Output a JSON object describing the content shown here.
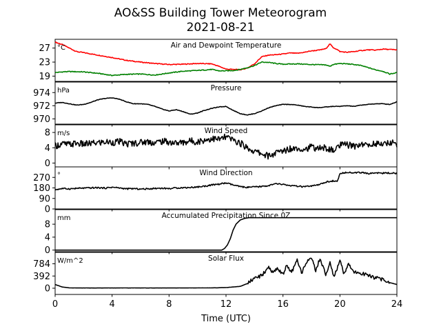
{
  "title": "AO&SS Building Tower Meteorogram",
  "subtitle": "2021-08-21",
  "chart_data": {
    "type": "line",
    "xlabel": "Time (UTC)",
    "xlim": [
      0,
      24
    ],
    "xticks": [
      0,
      4,
      8,
      12,
      16,
      20,
      24
    ],
    "panels": [
      {
        "name": "temperature",
        "title": "Air and Dewpoint Temperature",
        "unit": "°C",
        "ylim": [
          17.5,
          29.5
        ],
        "yticks": [
          19,
          23,
          27
        ],
        "series": [
          {
            "key": "air",
            "color": "#ff0000",
            "x": [
              0,
              0.5,
              1,
              1.5,
              2,
              3,
              4,
              5,
              6,
              7,
              8,
              9,
              10,
              11,
              11.5,
              12,
              12.5,
              13,
              13.5,
              14,
              14.5,
              15,
              15.5,
              16,
              16.5,
              17,
              17.5,
              18,
              18.5,
              19,
              19.3,
              19.5,
              19.8,
              20,
              20.5,
              21,
              21.5,
              22,
              22.5,
              23,
              23.5,
              24
            ],
            "y": [
              28.7,
              28.0,
              27.0,
              26.0,
              25.7,
              25.0,
              24.3,
              23.5,
              23.0,
              22.6,
              22.3,
              22.4,
              22.6,
              22.5,
              21.8,
              21.0,
              20.9,
              20.8,
              21.3,
              22.5,
              24.5,
              25.0,
              25.1,
              25.3,
              25.6,
              25.5,
              25.8,
              26.2,
              26.4,
              26.8,
              28.2,
              27.2,
              26.6,
              26.0,
              25.8,
              26.0,
              26.3,
              26.5,
              26.4,
              26.7,
              26.6,
              26.5
            ]
          },
          {
            "key": "dewpoint",
            "color": "#008000",
            "x": [
              0,
              0.5,
              1,
              2,
              3,
              4,
              5,
              6,
              7,
              8,
              9,
              10,
              11,
              11.5,
              12,
              12.5,
              13,
              13.5,
              14,
              14.5,
              15,
              15.5,
              16,
              17,
              18,
              19,
              19.3,
              19.5,
              20,
              20.5,
              21,
              21.5,
              22,
              22.5,
              23,
              23.5,
              24
            ],
            "y": [
              20.0,
              20.2,
              20.3,
              20.2,
              19.8,
              19.2,
              19.5,
              19.6,
              19.3,
              19.9,
              20.4,
              20.6,
              20.9,
              20.5,
              20.5,
              20.6,
              20.9,
              21.4,
              22.0,
              23.0,
              22.9,
              22.6,
              22.4,
              22.5,
              22.3,
              22.2,
              21.8,
              22.3,
              22.6,
              22.5,
              22.3,
              22.0,
              21.4,
              20.8,
              20.4,
              19.6,
              20.0
            ]
          }
        ]
      },
      {
        "name": "pressure",
        "title": "Pressure",
        "unit": "hPa",
        "ylim": [
          969.2,
          975.6
        ],
        "yticks": [
          970,
          972,
          974
        ],
        "series": [
          {
            "key": "pressure",
            "color": "#000000",
            "x": [
              0,
              0.5,
              1,
              1.5,
              2,
              2.5,
              3,
              3.5,
              4,
              4.5,
              5,
              5.5,
              6,
              6.5,
              7,
              7.5,
              8,
              8.5,
              9,
              9.5,
              10,
              10.5,
              11,
              11.5,
              12,
              12.5,
              13,
              13.5,
              14,
              14.5,
              15,
              15.5,
              16,
              16.5,
              17,
              17.5,
              18,
              18.5,
              19,
              19.5,
              20,
              20.5,
              21,
              21.5,
              22,
              22.5,
              23,
              23.5,
              24
            ],
            "y": [
              972.4,
              972.5,
              972.3,
              972.1,
              972.2,
              972.5,
              972.9,
              973.1,
              973.2,
              973.0,
              972.6,
              972.3,
              972.3,
              972.2,
              971.9,
              971.5,
              971.2,
              971.4,
              971.1,
              970.7,
              970.9,
              971.3,
              971.6,
              971.8,
              971.9,
              971.3,
              970.8,
              970.6,
              970.8,
              971.2,
              971.7,
              972.0,
              972.2,
              972.2,
              972.1,
              971.9,
              971.8,
              971.7,
              971.8,
              971.9,
              971.9,
              972.0,
              971.9,
              972.1,
              972.2,
              972.3,
              972.3,
              972.2,
              972.6
            ]
          }
        ]
      },
      {
        "name": "wind_speed",
        "title": "Wind Speed",
        "unit": "m/s",
        "ylim": [
          -1,
          10
        ],
        "yticks": [
          0,
          4,
          8
        ],
        "series": [
          {
            "key": "wind_speed",
            "color": "#000000",
            "x": [
              0,
              0.5,
              1,
              1.5,
              2,
              2.5,
              3,
              3.5,
              4,
              4.5,
              5,
              5.5,
              6,
              6.5,
              7,
              7.5,
              8,
              8.5,
              9,
              9.5,
              10,
              10.5,
              11,
              11.5,
              12,
              12.5,
              13,
              13.5,
              14,
              14.5,
              15,
              15.5,
              16,
              16.5,
              17,
              17.5,
              18,
              18.5,
              19,
              19.5,
              20,
              20.5,
              21,
              21.5,
              22,
              22.5,
              23,
              23.5,
              24
            ],
            "y": [
              4.5,
              5.0,
              4.8,
              5.2,
              4.9,
              5.1,
              5.3,
              5.5,
              5.4,
              5.6,
              5.0,
              5.2,
              5.4,
              5.6,
              5.3,
              5.7,
              5.5,
              5.2,
              5.4,
              5.8,
              5.6,
              6.0,
              6.4,
              6.2,
              6.8,
              6.0,
              5.2,
              4.0,
              3.0,
              2.5,
              1.8,
              2.6,
              3.2,
              3.8,
              4.0,
              3.6,
              4.2,
              3.8,
              4.0,
              3.2,
              4.6,
              4.8,
              4.4,
              5.0,
              4.6,
              5.2,
              4.8,
              5.4,
              5.0
            ]
          }
        ]
      },
      {
        "name": "wind_direction",
        "title": "Wind Direction",
        "unit": "°",
        "ylim": [
          0,
          360
        ],
        "yticks": [
          0,
          90,
          180,
          270
        ],
        "series": [
          {
            "key": "wind_direction",
            "color": "#000000",
            "x": [
              0,
              0.5,
              1,
              1.5,
              2,
              2.5,
              3,
              3.5,
              4,
              4.5,
              5,
              5.5,
              6,
              6.5,
              7,
              7.5,
              8,
              8.5,
              9,
              9.5,
              10,
              10.5,
              11,
              11.5,
              12,
              12.5,
              13,
              13.5,
              14,
              14.5,
              15,
              15.5,
              16,
              16.5,
              17,
              17.5,
              18,
              18.5,
              19,
              19.5,
              19.8,
              20,
              20.5,
              21,
              21.5,
              22,
              22.5,
              23,
              23.5,
              24
            ],
            "y": [
              165,
              175,
              172,
              176,
              178,
              180,
              182,
              178,
              186,
              180,
              172,
              174,
              170,
              172,
              176,
              178,
              174,
              180,
              182,
              184,
              188,
              195,
              205,
              212,
              222,
              205,
              190,
              185,
              188,
              192,
              200,
              215,
              210,
              200,
              194,
              190,
              196,
              205,
              230,
              240,
              232,
              300,
              316,
              308,
              312,
              302,
              310,
              306,
              308,
              304
            ]
          }
        ]
      },
      {
        "name": "precipitation",
        "title": "Accumulated Precipitation Since 0Z",
        "unit": "mm",
        "ylim": [
          -0.5,
          12.5
        ],
        "yticks": [
          0,
          4,
          8
        ],
        "series": [
          {
            "key": "precipitation",
            "color": "#000000",
            "x": [
              0,
              11.7,
              11.9,
              12.1,
              12.3,
              12.5,
              12.7,
              13.0,
              13.3,
              13.6,
              14.0,
              24
            ],
            "y": [
              0,
              0,
              0.5,
              1.6,
              3.5,
              6.2,
              8.0,
              9.3,
              9.8,
              10.0,
              10.0,
              10.0
            ]
          }
        ]
      },
      {
        "name": "solar_flux",
        "title": "Solar Flux",
        "unit": "W/m^2",
        "ylim": [
          -200,
          1150
        ],
        "yticks": [
          0,
          392,
          784
        ],
        "series": [
          {
            "key": "solar_flux",
            "color": "#000000",
            "x": [
              0,
              0.5,
              1,
              2,
              4,
              6,
              8,
              10,
              11,
              12,
              12.5,
              13,
              13.5,
              14,
              14.5,
              15,
              15.3,
              15.6,
              16,
              16.3,
              16.6,
              17,
              17.3,
              17.6,
              18,
              18.3,
              18.6,
              19,
              19.3,
              19.6,
              20,
              20.3,
              20.6,
              21,
              21.5,
              22,
              22.5,
              23,
              23.5,
              24
            ],
            "y": [
              120,
              40,
              10,
              8,
              8,
              8,
              8,
              10,
              12,
              20,
              40,
              60,
              150,
              320,
              400,
              700,
              480,
              650,
              450,
              750,
              500,
              880,
              480,
              820,
              950,
              560,
              980,
              420,
              820,
              350,
              920,
              430,
              760,
              520,
              480,
              420,
              330,
              280,
              180,
              120
            ]
          }
        ]
      }
    ]
  }
}
